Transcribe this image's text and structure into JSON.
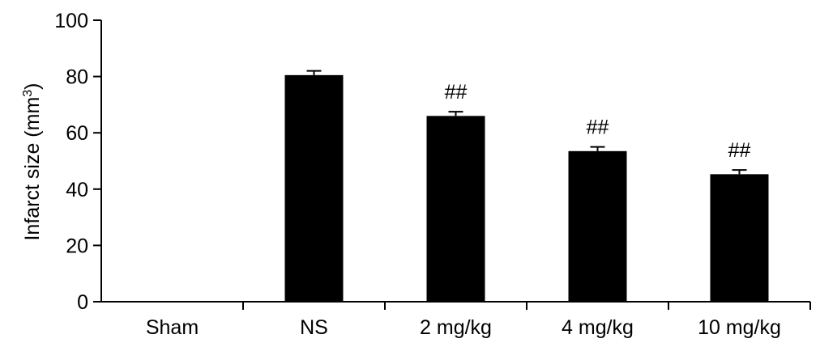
{
  "chart_data": {
    "type": "bar",
    "title": "",
    "xlabel": "",
    "ylabel": "Infarct size (mm",
    "ylabel_superscript": "3",
    "ylabel_suffix": ")",
    "ylim": [
      0,
      100
    ],
    "yticks": [
      0,
      20,
      40,
      60,
      80,
      100
    ],
    "categories": [
      "Sham",
      "NS",
      "2 mg/kg",
      "4 mg/kg",
      "10 mg/kg"
    ],
    "values": [
      0,
      80.5,
      66,
      53.5,
      45.3
    ],
    "errors": [
      0,
      1.5,
      1.5,
      1.5,
      1.5
    ],
    "annotations": [
      "",
      "",
      "##",
      "##",
      "##"
    ],
    "bar_color": "#000000",
    "grid": false,
    "legend": "none"
  }
}
